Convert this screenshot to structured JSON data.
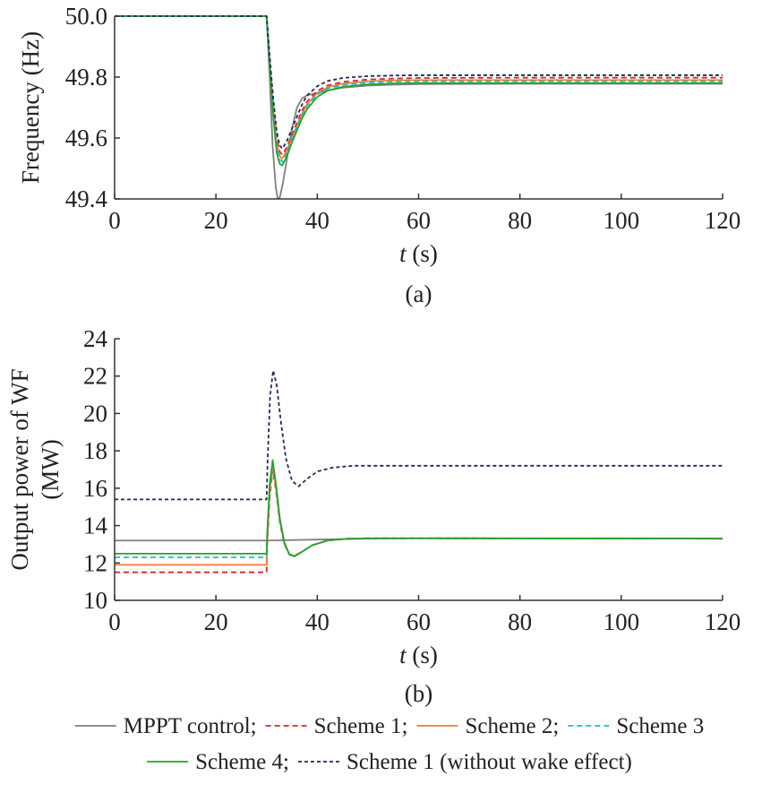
{
  "chart_data": [
    {
      "type": "line",
      "caption": "(a)",
      "xlabel": "t (s)",
      "xlabel_var": "t",
      "xlabel_unit": "(s)",
      "ylabel": "Frequency (Hz)",
      "xlim": [
        0,
        120
      ],
      "ylim": [
        49.4,
        50.0
      ],
      "xticks": [
        0,
        20,
        40,
        60,
        80,
        100,
        120
      ],
      "xtick_labels": [
        "0",
        "20",
        "40",
        "60",
        "80",
        "100",
        "120"
      ],
      "yticks": [
        49.4,
        49.6,
        49.8,
        50.0
      ],
      "ytick_labels": [
        "49.4",
        "49.6",
        "49.8",
        "50.0"
      ],
      "grid": false,
      "series": [
        {
          "name": "MPPT control",
          "color": "#7f7f7f",
          "dash": "solid",
          "x": [
            0,
            30,
            30.6,
            31.2,
            31.8,
            32.2,
            32.6,
            33.2,
            34,
            35,
            36,
            37,
            38,
            40,
            42,
            45,
            50,
            55,
            60,
            80,
            120
          ],
          "y": [
            50.0,
            50.0,
            49.8,
            49.57,
            49.44,
            49.4,
            49.405,
            49.45,
            49.53,
            49.63,
            49.7,
            49.73,
            49.74,
            49.748,
            49.756,
            49.765,
            49.772,
            49.775,
            49.777,
            49.778,
            49.778
          ]
        },
        {
          "name": "Scheme 1",
          "color": "#d62728",
          "dash": "dash",
          "x": [
            0,
            30,
            30.6,
            31.3,
            32,
            32.6,
            33.1,
            34,
            35,
            36,
            37,
            38,
            40,
            42,
            45,
            50,
            55,
            60,
            80,
            120
          ],
          "y": [
            50.0,
            50.0,
            49.86,
            49.71,
            49.6,
            49.555,
            49.545,
            49.57,
            49.61,
            49.65,
            49.69,
            49.72,
            49.755,
            49.772,
            49.784,
            49.792,
            49.795,
            49.797,
            49.798,
            49.798
          ]
        },
        {
          "name": "Scheme 2",
          "color": "#ed7d31",
          "dash": "solid",
          "x": [
            0,
            30,
            30.6,
            31.3,
            32,
            32.6,
            33.1,
            34,
            35,
            36,
            37,
            38,
            40,
            42,
            45,
            50,
            55,
            60,
            80,
            120
          ],
          "y": [
            50.0,
            50.0,
            49.85,
            49.7,
            49.58,
            49.54,
            49.532,
            49.56,
            49.6,
            49.64,
            49.68,
            49.71,
            49.748,
            49.766,
            49.778,
            49.786,
            49.789,
            49.79,
            49.79,
            49.79
          ]
        },
        {
          "name": "Scheme 3",
          "color": "#17becf",
          "dash": "dash",
          "x": [
            0,
            30,
            30.6,
            31.3,
            32,
            32.6,
            33.1,
            34,
            35,
            36,
            37,
            38,
            40,
            42,
            45,
            50,
            55,
            60,
            80,
            120
          ],
          "y": [
            50.0,
            50.0,
            49.85,
            49.69,
            49.57,
            49.53,
            49.522,
            49.55,
            49.595,
            49.635,
            49.675,
            49.705,
            49.743,
            49.762,
            49.774,
            49.782,
            49.785,
            49.786,
            49.786,
            49.786
          ]
        },
        {
          "name": "Scheme 4",
          "color": "#2ca02c",
          "dash": "solid",
          "x": [
            0,
            30,
            30.6,
            31.3,
            32,
            32.6,
            33.1,
            34,
            35,
            36,
            37,
            38,
            40,
            42,
            45,
            50,
            55,
            60,
            80,
            120
          ],
          "y": [
            50.0,
            50.0,
            49.84,
            49.67,
            49.55,
            49.515,
            49.51,
            49.54,
            49.585,
            49.625,
            49.665,
            49.695,
            49.735,
            49.755,
            49.768,
            49.776,
            49.779,
            49.78,
            49.78,
            49.78
          ]
        },
        {
          "name": "Scheme 1 (without wake effect)",
          "color": "#1f2a5c",
          "dash": "dot",
          "x": [
            0,
            30,
            30.6,
            31.3,
            32,
            32.6,
            33.1,
            34,
            35,
            36,
            37,
            38,
            40,
            42,
            45,
            50,
            55,
            60,
            80,
            120
          ],
          "y": [
            50.0,
            50.0,
            49.87,
            49.73,
            49.62,
            49.575,
            49.565,
            49.59,
            49.63,
            49.67,
            49.71,
            49.74,
            49.77,
            49.787,
            49.797,
            49.803,
            49.805,
            49.806,
            49.806,
            49.806
          ]
        }
      ]
    },
    {
      "type": "line",
      "caption": "(b)",
      "xlabel": "t (s)",
      "xlabel_var": "t",
      "xlabel_unit": "(s)",
      "ylabel": "Output power of WF (MW)",
      "ylabel_lines": [
        "Output power of WF",
        "(MW)"
      ],
      "xlim": [
        0,
        120
      ],
      "ylim": [
        10,
        24
      ],
      "xticks": [
        0,
        20,
        40,
        60,
        80,
        100,
        120
      ],
      "xtick_labels": [
        "0",
        "20",
        "40",
        "60",
        "80",
        "100",
        "120"
      ],
      "yticks": [
        10,
        12,
        14,
        16,
        18,
        20,
        22,
        24
      ],
      "ytick_labels": [
        "10",
        "12",
        "14",
        "16",
        "18",
        "20",
        "22",
        "24"
      ],
      "grid": false,
      "series": [
        {
          "name": "MPPT control",
          "color": "#7f7f7f",
          "dash": "solid",
          "x": [
            0,
            30,
            40,
            50,
            60,
            120
          ],
          "y": [
            13.2,
            13.2,
            13.25,
            13.3,
            13.32,
            13.32
          ]
        },
        {
          "name": "Scheme 1",
          "color": "#d62728",
          "dash": "dash",
          "x": [
            0,
            30,
            30.1,
            30.6,
            31.2,
            31.9,
            32.6,
            33.5,
            34.5,
            35.5,
            37,
            39,
            42,
            46,
            50,
            60,
            120
          ],
          "y": [
            11.5,
            11.5,
            12.8,
            15.5,
            17.0,
            15.8,
            14.2,
            13.0,
            12.45,
            12.4,
            12.6,
            12.95,
            13.2,
            13.3,
            13.32,
            13.32,
            13.3
          ]
        },
        {
          "name": "Scheme 2",
          "color": "#ed7d31",
          "dash": "solid",
          "x": [
            0,
            30,
            30.1,
            30.6,
            31.2,
            31.9,
            32.6,
            33.5,
            34.5,
            35.5,
            37,
            39,
            42,
            46,
            50,
            60,
            120
          ],
          "y": [
            11.9,
            11.9,
            13.0,
            15.8,
            17.3,
            15.9,
            14.3,
            13.05,
            12.45,
            12.38,
            12.6,
            12.95,
            13.2,
            13.3,
            13.32,
            13.32,
            13.3
          ]
        },
        {
          "name": "Scheme 3",
          "color": "#17becf",
          "dash": "dash",
          "x": [
            0,
            30,
            30.1,
            30.6,
            31.2,
            31.9,
            32.6,
            33.5,
            34.5,
            35.5,
            37,
            39,
            42,
            46,
            50,
            60,
            120
          ],
          "y": [
            12.3,
            12.3,
            13.3,
            16.0,
            17.4,
            16.0,
            14.35,
            13.05,
            12.45,
            12.38,
            12.6,
            12.95,
            13.2,
            13.3,
            13.32,
            13.32,
            13.3
          ]
        },
        {
          "name": "Scheme 4",
          "color": "#2ca02c",
          "dash": "solid",
          "x": [
            0,
            30,
            30.1,
            30.6,
            31.2,
            31.9,
            32.6,
            33.5,
            34.5,
            35.5,
            37,
            39,
            42,
            46,
            50,
            60,
            120
          ],
          "y": [
            12.5,
            12.5,
            13.5,
            16.2,
            17.5,
            16.1,
            14.4,
            13.1,
            12.45,
            12.35,
            12.6,
            12.95,
            13.2,
            13.3,
            13.32,
            13.32,
            13.3
          ]
        },
        {
          "name": "Scheme 1 (without wake effect)",
          "color": "#1f2a5c",
          "dash": "dot",
          "x": [
            0,
            30,
            30.2,
            30.7,
            31.3,
            32,
            32.8,
            33.8,
            35,
            36.3,
            38,
            40,
            43,
            47,
            52,
            60,
            120
          ],
          "y": [
            15.4,
            15.4,
            17.5,
            21.0,
            22.3,
            21.5,
            19.6,
            17.6,
            16.4,
            16.1,
            16.5,
            16.9,
            17.1,
            17.2,
            17.2,
            17.2,
            17.2
          ]
        }
      ]
    }
  ],
  "legend": {
    "placement": "bottom",
    "rows": [
      [
        {
          "label": "MPPT control;",
          "color": "#7f7f7f",
          "dash": "solid"
        },
        {
          "label": "Scheme 1;",
          "color": "#d62728",
          "dash": "dash"
        },
        {
          "label": "Scheme 2;",
          "color": "#ed7d31",
          "dash": "solid"
        },
        {
          "label": "Scheme 3",
          "color": "#17becf",
          "dash": "dash"
        }
      ],
      [
        {
          "label": "Scheme 4;",
          "color": "#2ca02c",
          "dash": "solid"
        },
        {
          "label": "Scheme 1 (without wake effect)",
          "color": "#1f2a5c",
          "dash": "dot"
        }
      ]
    ]
  }
}
